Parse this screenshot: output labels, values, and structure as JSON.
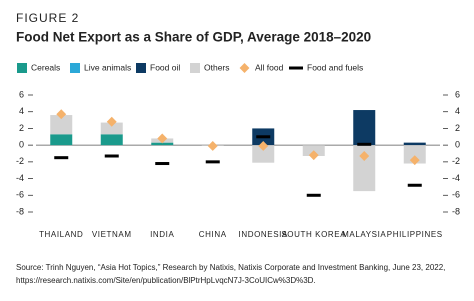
{
  "chart_data": {
    "type": "stacked_bar",
    "label": "FIGURE 2",
    "title": "Food Net Export as a Share of GDP, Average 2018–2020",
    "categories": [
      "THAILAND",
      "VIETNAM",
      "INDIA",
      "CHINA",
      "INDONESIA",
      "SOUTH KOREA",
      "MALAYSIA",
      "PHILIPPINES"
    ],
    "series": [
      {
        "name": "Cereals",
        "color": "#1a9a8c",
        "style": "bar",
        "values": [
          1.3,
          1.3,
          0.3,
          0,
          0,
          0,
          0,
          0
        ]
      },
      {
        "name": "Live animals",
        "color": "#2ba8d8",
        "style": "bar",
        "values": [
          0,
          0,
          0,
          0,
          0,
          0,
          0,
          0
        ]
      },
      {
        "name": "Food oil",
        "color": "#0d3a63",
        "style": "bar",
        "values": [
          0,
          0,
          0,
          0,
          2.0,
          0,
          4.2,
          0.3
        ]
      },
      {
        "name": "Others",
        "color": "#d3d3d3",
        "style": "bar",
        "values": [
          2.3,
          1.4,
          0.5,
          -0.1,
          -2.1,
          -1.3,
          -5.5,
          -2.2
        ]
      },
      {
        "name": "All food",
        "color": "#f5b26b",
        "style": "diamond",
        "values": [
          3.7,
          2.8,
          0.8,
          -0.1,
          -0.1,
          -1.2,
          -1.3,
          -1.8
        ]
      },
      {
        "name": "Food and fuels",
        "color": "#000000",
        "style": "dash",
        "values": [
          -1.5,
          -1.3,
          -2.2,
          -2.0,
          1.0,
          -6.0,
          0.1,
          -4.8
        ]
      }
    ],
    "ylim": [
      -8,
      6
    ],
    "yticks": [
      -8,
      -6,
      -4,
      -2,
      0,
      2,
      4,
      6
    ],
    "y2lim": [
      -8,
      6
    ],
    "y2ticks": [
      -8,
      -6,
      -4,
      -2,
      0,
      2,
      4,
      6
    ],
    "source": [
      "Source: Trinh Nguyen, “Asia Hot Topics,” Research by Natixis, Natixis Corporate and Investment Banking, June 23, 2022,",
      "https://research.natixis.com/Site/en/publication/BlPtrHpLvqcN7J-3CoUICw%3D%3D."
    ]
  }
}
